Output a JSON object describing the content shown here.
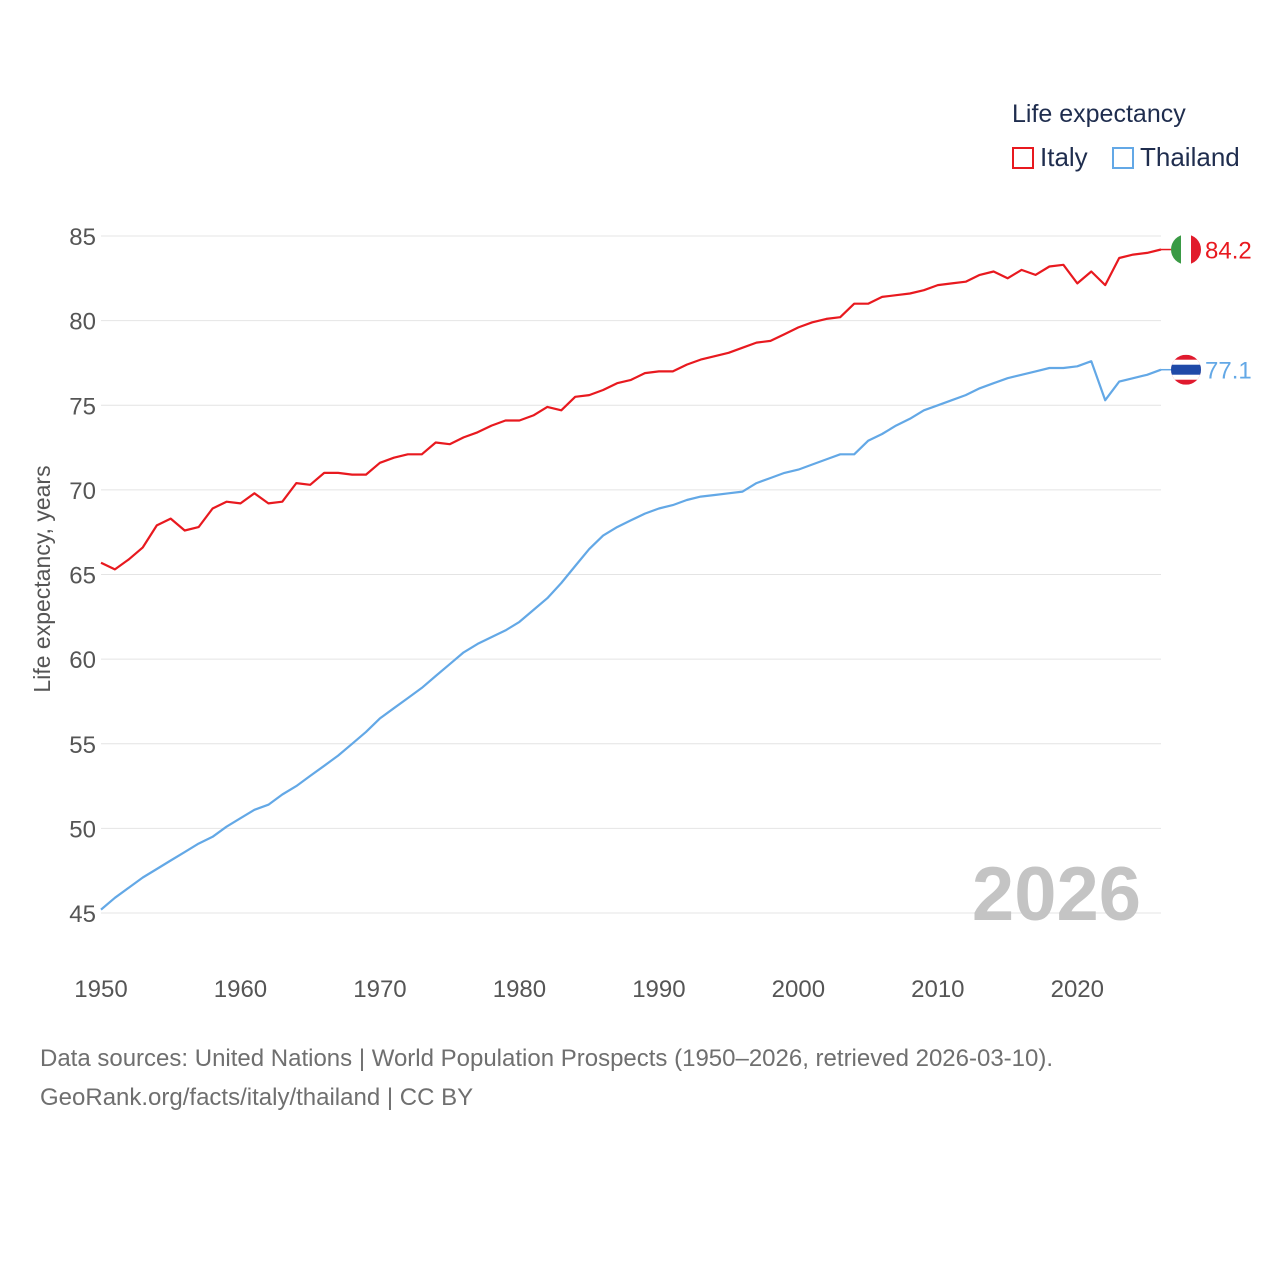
{
  "legend": {
    "title": "Life expectancy",
    "items": [
      {
        "name": "Italy",
        "color": "#e8191f"
      },
      {
        "name": "Thailand",
        "color": "#63a8e6"
      }
    ]
  },
  "footer": {
    "line1": "Data sources: United Nations | World Population Prospects (1950–2026, retrieved 2026-03-10).",
    "line2": "GeoRank.org/facts/italy/thailand | CC BY"
  },
  "chart_data": {
    "type": "line",
    "title": "Life expectancy",
    "xlabel": "",
    "ylabel": "Life expectancy, years",
    "xlim": [
      1950,
      2026
    ],
    "ylim": [
      45,
      85
    ],
    "xticks": [
      1950,
      1960,
      1970,
      1980,
      1990,
      2000,
      2010,
      2020
    ],
    "yticks": [
      45,
      50,
      55,
      60,
      65,
      70,
      75,
      80,
      85
    ],
    "grid": true,
    "legend_position": "top-right",
    "year_label": "2026",
    "x": [
      1950,
      1951,
      1952,
      1953,
      1954,
      1955,
      1956,
      1957,
      1958,
      1959,
      1960,
      1961,
      1962,
      1963,
      1964,
      1965,
      1966,
      1967,
      1968,
      1969,
      1970,
      1971,
      1972,
      1973,
      1974,
      1975,
      1976,
      1977,
      1978,
      1979,
      1980,
      1981,
      1982,
      1983,
      1984,
      1985,
      1986,
      1987,
      1988,
      1989,
      1990,
      1991,
      1992,
      1993,
      1994,
      1995,
      1996,
      1997,
      1998,
      1999,
      2000,
      2001,
      2002,
      2003,
      2004,
      2005,
      2006,
      2007,
      2008,
      2009,
      2010,
      2011,
      2012,
      2013,
      2014,
      2015,
      2016,
      2017,
      2018,
      2019,
      2020,
      2021,
      2022,
      2023,
      2024,
      2025,
      2026
    ],
    "series": [
      {
        "name": "Italy",
        "color": "#e8191f",
        "end_label": "84.2",
        "flag": "italy-flag",
        "values": [
          65.7,
          65.3,
          65.9,
          66.6,
          67.9,
          68.3,
          67.6,
          67.8,
          68.9,
          69.3,
          69.2,
          69.8,
          69.2,
          69.3,
          70.4,
          70.3,
          71.0,
          71.0,
          70.9,
          70.9,
          71.6,
          71.9,
          72.1,
          72.1,
          72.8,
          72.7,
          73.1,
          73.4,
          73.8,
          74.1,
          74.1,
          74.4,
          74.9,
          74.7,
          75.5,
          75.6,
          75.9,
          76.3,
          76.5,
          76.9,
          77.0,
          77.0,
          77.4,
          77.7,
          77.9,
          78.1,
          78.4,
          78.7,
          78.8,
          79.2,
          79.6,
          79.9,
          80.1,
          80.2,
          81.0,
          81.0,
          81.4,
          81.5,
          81.6,
          81.8,
          82.1,
          82.2,
          82.3,
          82.7,
          82.9,
          82.5,
          83.0,
          82.7,
          83.2,
          83.3,
          82.2,
          82.9,
          82.1,
          83.7,
          83.9,
          84.0,
          84.2
        ]
      },
      {
        "name": "Thailand",
        "color": "#63a8e6",
        "end_label": "77.1",
        "flag": "thailand-flag",
        "values": [
          45.2,
          45.9,
          46.5,
          47.1,
          47.6,
          48.1,
          48.6,
          49.1,
          49.5,
          50.1,
          50.6,
          51.1,
          51.4,
          52.0,
          52.5,
          53.1,
          53.7,
          54.3,
          55.0,
          55.7,
          56.5,
          57.1,
          57.7,
          58.3,
          59.0,
          59.7,
          60.4,
          60.9,
          61.3,
          61.7,
          62.2,
          62.9,
          63.6,
          64.5,
          65.5,
          66.5,
          67.3,
          67.8,
          68.2,
          68.6,
          68.9,
          69.1,
          69.4,
          69.6,
          69.7,
          69.8,
          69.9,
          70.4,
          70.7,
          71.0,
          71.2,
          71.5,
          71.8,
          72.1,
          72.1,
          72.9,
          73.3,
          73.8,
          74.2,
          74.7,
          75.0,
          75.3,
          75.6,
          76.0,
          76.3,
          76.6,
          76.8,
          77.0,
          77.2,
          77.2,
          77.3,
          77.6,
          75.3,
          76.4,
          76.6,
          76.8,
          77.1
        ]
      }
    ]
  }
}
